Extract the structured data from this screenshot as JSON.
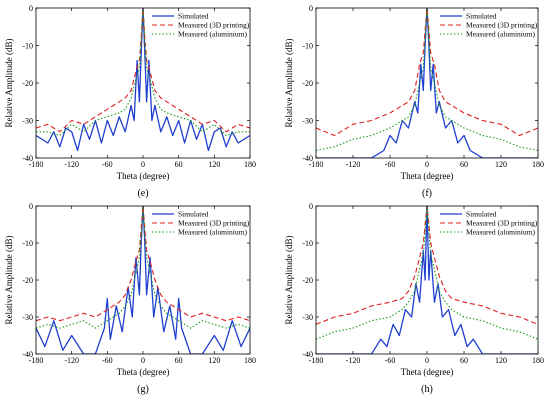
{
  "figure": {
    "panel_labels": [
      "(e)",
      "(f)",
      "(g)",
      "(h)"
    ]
  },
  "chart_data": [
    {
      "type": "line",
      "panel": "(e)",
      "xlabel": "Theta (degree)",
      "ylabel": "Relative Amplitude (dB)",
      "xlim": [
        -180,
        180
      ],
      "ylim": [
        -40,
        0
      ],
      "xticks": [
        -180,
        -120,
        -60,
        0,
        60,
        120,
        180
      ],
      "yticks": [
        -40,
        -30,
        -20,
        -10,
        0
      ],
      "legend_position": "top-right",
      "series": [
        {
          "name": "Simulated",
          "color": "#1f3fd0",
          "dash": "solid",
          "x": [
            -180,
            -160,
            -150,
            -140,
            -130,
            -120,
            -110,
            -100,
            -90,
            -80,
            -70,
            -60,
            -50,
            -40,
            -30,
            -20,
            -15,
            -10,
            -6,
            -3,
            0,
            3,
            6,
            10,
            15,
            20,
            30,
            40,
            50,
            60,
            70,
            80,
            90,
            100,
            110,
            120,
            130,
            140,
            150,
            160,
            180
          ],
          "y": [
            -34,
            -36,
            -33,
            -37,
            -32,
            -33,
            -38,
            -31,
            -35,
            -30,
            -36,
            -30,
            -34,
            -29,
            -33,
            -26,
            -30,
            -14,
            -25,
            -12,
            0,
            -12,
            -25,
            -14,
            -30,
            -26,
            -33,
            -29,
            -34,
            -30,
            -36,
            -30,
            -35,
            -31,
            -38,
            -33,
            -32,
            -37,
            -33,
            -36,
            -34
          ]
        },
        {
          "name": "Measured (3D printing)",
          "color": "#e02020",
          "dash": "5,3",
          "x": [
            -180,
            -160,
            -140,
            -120,
            -100,
            -80,
            -60,
            -40,
            -30,
            -20,
            -12,
            -6,
            -3,
            0,
            3,
            6,
            12,
            20,
            30,
            40,
            60,
            80,
            100,
            120,
            140,
            160,
            180
          ],
          "y": [
            -32,
            -31,
            -33,
            -30,
            -31,
            -29,
            -27,
            -25,
            -24,
            -22,
            -17,
            -14,
            -8,
            0,
            -8,
            -14,
            -17,
            -22,
            -24,
            -25,
            -27,
            -29,
            -31,
            -30,
            -33,
            -31,
            -32
          ]
        },
        {
          "name": "Measured (aluminium)",
          "color": "#1a9a1a",
          "dash": "1.5,2",
          "x": [
            -180,
            -160,
            -140,
            -120,
            -100,
            -80,
            -60,
            -40,
            -30,
            -20,
            -12,
            -6,
            -3,
            0,
            3,
            6,
            12,
            20,
            30,
            40,
            60,
            80,
            100,
            120,
            140,
            160,
            180
          ],
          "y": [
            -33,
            -33,
            -34,
            -31,
            -33,
            -30,
            -29,
            -28,
            -27,
            -24,
            -19,
            -16,
            -9,
            0,
            -9,
            -16,
            -19,
            -24,
            -27,
            -28,
            -29,
            -30,
            -33,
            -31,
            -34,
            -33,
            -33
          ]
        }
      ]
    },
    {
      "type": "line",
      "panel": "(f)",
      "xlabel": "Theta (degree)",
      "ylabel": "Relative Amplitude (dB)",
      "xlim": [
        -180,
        180
      ],
      "ylim": [
        -40,
        0
      ],
      "xticks": [
        -180,
        -120,
        -60,
        0,
        60,
        120,
        180
      ],
      "yticks": [
        -40,
        -30,
        -20,
        -10,
        0
      ],
      "legend_position": "top-right",
      "series": [
        {
          "name": "Simulated",
          "color": "#1f3fd0",
          "dash": "solid",
          "x": [
            -180,
            -120,
            -90,
            -70,
            -60,
            -50,
            -40,
            -30,
            -20,
            -15,
            -10,
            -6,
            -3,
            0,
            3,
            6,
            10,
            15,
            20,
            30,
            40,
            50,
            60,
            70,
            90,
            120,
            180
          ],
          "y": [
            -40,
            -40,
            -40,
            -38,
            -34,
            -36,
            -30,
            -32,
            -25,
            -28,
            -15,
            -22,
            -10,
            0,
            -10,
            -22,
            -15,
            -28,
            -25,
            -32,
            -30,
            -36,
            -34,
            -38,
            -40,
            -40,
            -40
          ]
        },
        {
          "name": "Measured (3D printing)",
          "color": "#e02020",
          "dash": "5,3",
          "x": [
            -180,
            -150,
            -120,
            -90,
            -60,
            -40,
            -30,
            -20,
            -12,
            -6,
            -3,
            0,
            3,
            6,
            12,
            20,
            30,
            40,
            60,
            90,
            120,
            150,
            180
          ],
          "y": [
            -32,
            -34,
            -31,
            -30,
            -28,
            -26,
            -25,
            -22,
            -15,
            -12,
            -6,
            0,
            -6,
            -12,
            -15,
            -22,
            -25,
            -26,
            -28,
            -30,
            -31,
            -34,
            -32
          ]
        },
        {
          "name": "Measured (aluminium)",
          "color": "#1a9a1a",
          "dash": "1.5,2",
          "x": [
            -180,
            -150,
            -120,
            -90,
            -60,
            -40,
            -30,
            -20,
            -12,
            -6,
            -3,
            0,
            3,
            6,
            12,
            20,
            30,
            40,
            60,
            90,
            120,
            150,
            180
          ],
          "y": [
            -38,
            -37,
            -35,
            -34,
            -32,
            -30,
            -29,
            -26,
            -20,
            -16,
            -8,
            0,
            -8,
            -16,
            -20,
            -26,
            -29,
            -30,
            -32,
            -34,
            -35,
            -37,
            -38
          ]
        }
      ]
    },
    {
      "type": "line",
      "panel": "(g)",
      "xlabel": "Theta (degree)",
      "ylabel": "Relative Amplitude (dB)",
      "xlim": [
        -180,
        180
      ],
      "ylim": [
        -40,
        0
      ],
      "xticks": [
        -180,
        -120,
        -60,
        0,
        60,
        120,
        180
      ],
      "yticks": [
        -40,
        -30,
        -20,
        -10,
        0
      ],
      "legend_position": "top-right",
      "series": [
        {
          "name": "Simulated",
          "color": "#1f3fd0",
          "dash": "solid",
          "x": [
            -180,
            -165,
            -150,
            -135,
            -120,
            -100,
            -80,
            -65,
            -60,
            -55,
            -45,
            -35,
            -25,
            -18,
            -12,
            -6,
            -3,
            0,
            3,
            6,
            12,
            18,
            25,
            35,
            45,
            55,
            60,
            65,
            80,
            100,
            120,
            135,
            150,
            165,
            180
          ],
          "y": [
            -33,
            -38,
            -31,
            -39,
            -35,
            -40,
            -40,
            -33,
            -25,
            -36,
            -27,
            -34,
            -22,
            -30,
            -14,
            -24,
            -10,
            0,
            -10,
            -24,
            -14,
            -30,
            -22,
            -34,
            -27,
            -36,
            -25,
            -33,
            -40,
            -40,
            -35,
            -39,
            -31,
            -38,
            -33
          ]
        },
        {
          "name": "Measured (3D printing)",
          "color": "#e02020",
          "dash": "5,3",
          "x": [
            -180,
            -160,
            -140,
            -120,
            -100,
            -80,
            -60,
            -40,
            -30,
            -20,
            -12,
            -6,
            -3,
            0,
            3,
            6,
            12,
            20,
            30,
            40,
            60,
            80,
            100,
            120,
            140,
            160,
            180
          ],
          "y": [
            -31,
            -30,
            -31,
            -30,
            -29,
            -30,
            -28,
            -26,
            -24,
            -20,
            -15,
            -12,
            -6,
            0,
            -6,
            -12,
            -15,
            -20,
            -24,
            -26,
            -28,
            -30,
            -29,
            -30,
            -31,
            -30,
            -31
          ]
        },
        {
          "name": "Measured (aluminium)",
          "color": "#1a9a1a",
          "dash": "1.5,2",
          "x": [
            -180,
            -160,
            -140,
            -120,
            -100,
            -80,
            -60,
            -40,
            -30,
            -20,
            -12,
            -6,
            -3,
            0,
            3,
            6,
            12,
            20,
            30,
            40,
            60,
            80,
            100,
            120,
            140,
            160,
            180
          ],
          "y": [
            -33,
            -32,
            -33,
            -32,
            -31,
            -33,
            -31,
            -29,
            -27,
            -24,
            -18,
            -14,
            -8,
            0,
            -8,
            -14,
            -18,
            -24,
            -27,
            -29,
            -31,
            -33,
            -31,
            -32,
            -33,
            -32,
            -33
          ]
        }
      ]
    },
    {
      "type": "line",
      "panel": "(h)",
      "xlabel": "Theta (degree)",
      "ylabel": "Relative Amplitude (dB)",
      "xlim": [
        -180,
        180
      ],
      "ylim": [
        -40,
        0
      ],
      "xticks": [
        -180,
        -120,
        -60,
        0,
        60,
        120,
        180
      ],
      "yticks": [
        -40,
        -30,
        -20,
        -10,
        0
      ],
      "legend_position": "top-right",
      "series": [
        {
          "name": "Simulated",
          "color": "#1f3fd0",
          "dash": "solid",
          "x": [
            -180,
            -150,
            -120,
            -90,
            -75,
            -65,
            -55,
            -45,
            -35,
            -25,
            -18,
            -12,
            -6,
            -3,
            0,
            3,
            6,
            12,
            18,
            25,
            35,
            45,
            55,
            65,
            75,
            90,
            120,
            150,
            180
          ],
          "y": [
            -40,
            -40,
            -40,
            -40,
            -36,
            -38,
            -32,
            -35,
            -28,
            -30,
            -21,
            -26,
            -12,
            -20,
            0,
            -20,
            -12,
            -26,
            -21,
            -30,
            -28,
            -35,
            -32,
            -38,
            -36,
            -40,
            -40,
            -40,
            -40
          ]
        },
        {
          "name": "Measured (3D printing)",
          "color": "#e02020",
          "dash": "5,3",
          "x": [
            -180,
            -150,
            -120,
            -90,
            -60,
            -40,
            -30,
            -20,
            -12,
            -6,
            -3,
            0,
            3,
            6,
            12,
            20,
            30,
            40,
            60,
            90,
            120,
            150,
            180
          ],
          "y": [
            -32,
            -30,
            -29,
            -27,
            -26,
            -25,
            -23,
            -19,
            -14,
            -10,
            -5,
            0,
            -5,
            -10,
            -14,
            -19,
            -23,
            -25,
            -26,
            -27,
            -29,
            -30,
            -32
          ]
        },
        {
          "name": "Measured (aluminium)",
          "color": "#1a9a1a",
          "dash": "1.5,2",
          "x": [
            -180,
            -150,
            -120,
            -90,
            -60,
            -40,
            -30,
            -20,
            -12,
            -6,
            -3,
            0,
            3,
            6,
            12,
            20,
            30,
            40,
            60,
            90,
            120,
            150,
            180
          ],
          "y": [
            -36,
            -34,
            -33,
            -31,
            -30,
            -28,
            -26,
            -23,
            -17,
            -13,
            -7,
            0,
            -7,
            -13,
            -17,
            -23,
            -26,
            -28,
            -30,
            -31,
            -33,
            -34,
            -36
          ]
        }
      ]
    }
  ]
}
